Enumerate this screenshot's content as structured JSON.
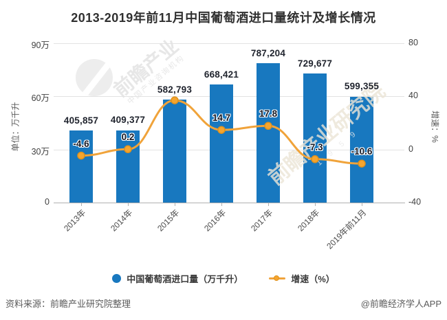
{
  "title": "2013-2019年前11月中国葡萄酒进口量统计及增长情况",
  "left_axis": {
    "name": "单位：万千升",
    "ticks": [
      "90万",
      "60万",
      "30万",
      "0"
    ]
  },
  "right_axis": {
    "name": "增速：%",
    "ticks": [
      "80",
      "40",
      "0",
      "-40"
    ]
  },
  "legend": [
    {
      "label": "中国葡萄酒进口量（万千升）",
      "marker": "circle-marker",
      "color": "#1878bf"
    },
    {
      "label": "增速（%）",
      "marker": "line-dot-marker",
      "color": "#f0a33a"
    }
  ],
  "footer": {
    "source": "资料来源：前瞻产业研究院整理",
    "brand": "@前瞻经济学人APP"
  },
  "watermarks": {
    "logo": "qianzhan-logo",
    "text_a_main": "前瞻产业",
    "text_a_sub": "中国产业咨询机构",
    "text_b_main": "前瞻产业研究院",
    "text_b_sub": "1 9 5 9"
  },
  "colors": {
    "bar": "#1878bf",
    "line": "#f0a33a",
    "marker_fill": "#f5a52f",
    "marker_stroke": "#e0921c",
    "grid": "#e2e2e2",
    "axis_line": "#b0b0b0"
  },
  "chart_data": {
    "type": "bar",
    "subtype": "bar+line dual-axis combo",
    "title": "2013-2019年前11月中国葡萄酒进口量统计及增长情况",
    "categories": [
      "2013年",
      "2014年",
      "2015年",
      "2016年",
      "2017年",
      "2018年",
      "2019年前11月"
    ],
    "series": [
      {
        "name": "中国葡萄酒进口量（万千升）",
        "type": "bar",
        "axis": "left",
        "values": [
          405857,
          409377,
          582793,
          668421,
          787204,
          729677,
          599355
        ],
        "labels": [
          "405,857",
          "409,377",
          "582,793",
          "668,421",
          "787,204",
          "729,677",
          "599,355"
        ]
      },
      {
        "name": "增速（%）",
        "type": "line",
        "axis": "right",
        "values": [
          -4.6,
          0.2,
          37,
          14.7,
          17.8,
          -7.3,
          -10.6
        ],
        "labels": [
          "-4.6",
          "0.2",
          "",
          "14.7",
          "17.8",
          "-7.3",
          "-10.6"
        ],
        "note": "2015 point label hidden behind bar label; value estimated from gridlines"
      }
    ],
    "left_ylabel": "单位：万千升",
    "right_ylabel": "增速：%",
    "left_ylim": [
      0,
      900000
    ],
    "left_ticks": [
      0,
      300000,
      600000,
      900000
    ],
    "right_ylim": [
      -40,
      80
    ],
    "right_ticks": [
      -40,
      0,
      40,
      80
    ],
    "grid": true,
    "legend_position": "bottom"
  }
}
